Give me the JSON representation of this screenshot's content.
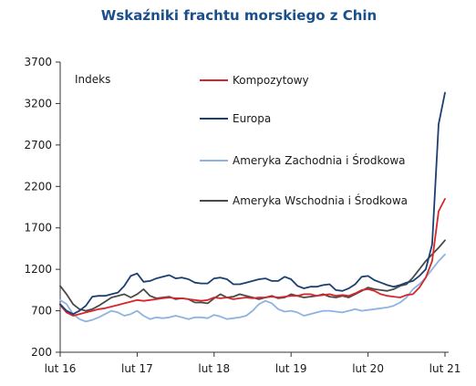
{
  "chart_data": {
    "type": "line",
    "title": "Wskaźniki frachtu morskiego z Chin",
    "ylabel": "Indeks",
    "xlabel": "",
    "ylim": [
      200,
      3700
    ],
    "yticks": [
      200,
      700,
      1200,
      1700,
      2200,
      2700,
      3200,
      3700
    ],
    "xlim": [
      0,
      60
    ],
    "xticks": [
      {
        "label": "lut 16",
        "x": 0
      },
      {
        "label": "lut 17",
        "x": 12
      },
      {
        "label": "lut 18",
        "x": 24
      },
      {
        "label": "lut 19",
        "x": 36
      },
      {
        "label": "lut 20",
        "x": 48
      },
      {
        "label": "lut 21",
        "x": 60
      }
    ],
    "legend_position": "upper-right",
    "grid": false,
    "series": [
      {
        "name": "Kompozytowy",
        "color": "#d7262b",
        "x": [
          0,
          1,
          2,
          3,
          4,
          5,
          6,
          7,
          8,
          9,
          10,
          11,
          12,
          13,
          14,
          15,
          16,
          17,
          18,
          19,
          20,
          21,
          22,
          23,
          24,
          25,
          26,
          27,
          28,
          29,
          30,
          31,
          32,
          33,
          34,
          35,
          36,
          37,
          38,
          39,
          40,
          41,
          42,
          43,
          44,
          45,
          46,
          47,
          48,
          49,
          50,
          51,
          52,
          53,
          54,
          55,
          56,
          57,
          58,
          59,
          60
        ],
        "values": [
          770,
          680,
          640,
          660,
          680,
          700,
          720,
          730,
          750,
          770,
          790,
          810,
          830,
          820,
          830,
          840,
          850,
          860,
          850,
          850,
          840,
          830,
          820,
          830,
          860,
          850,
          860,
          840,
          850,
          860,
          850,
          860,
          860,
          870,
          860,
          870,
          880,
          880,
          900,
          900,
          880,
          890,
          900,
          880,
          890,
          880,
          910,
          950,
          960,
          940,
          900,
          880,
          870,
          860,
          890,
          900,
          980,
          1100,
          1300,
          1900,
          2050
        ]
      },
      {
        "name": "Europa",
        "color": "#1c3f72",
        "x": [
          0,
          1,
          2,
          3,
          4,
          5,
          6,
          7,
          8,
          9,
          10,
          11,
          12,
          13,
          14,
          15,
          16,
          17,
          18,
          19,
          20,
          21,
          22,
          23,
          24,
          25,
          26,
          27,
          28,
          29,
          30,
          31,
          32,
          33,
          34,
          35,
          36,
          37,
          38,
          39,
          40,
          41,
          42,
          43,
          44,
          45,
          46,
          47,
          48,
          49,
          50,
          51,
          52,
          53,
          54,
          55,
          56,
          57,
          58,
          59,
          60
        ],
        "values": [
          780,
          700,
          660,
          700,
          760,
          870,
          880,
          880,
          900,
          920,
          1000,
          1120,
          1150,
          1050,
          1060,
          1090,
          1110,
          1130,
          1090,
          1100,
          1080,
          1040,
          1030,
          1030,
          1090,
          1100,
          1080,
          1020,
          1020,
          1040,
          1060,
          1080,
          1090,
          1060,
          1060,
          1110,
          1080,
          1000,
          970,
          990,
          990,
          1010,
          1020,
          950,
          940,
          970,
          1020,
          1110,
          1120,
          1070,
          1040,
          1010,
          990,
          1010,
          1040,
          1060,
          1120,
          1200,
          1500,
          2950,
          3330
        ]
      },
      {
        "name": "Ameryka Zachodnia i Środkowa",
        "color": "#8fb3e0",
        "x": [
          0,
          1,
          2,
          3,
          4,
          5,
          6,
          7,
          8,
          9,
          10,
          11,
          12,
          13,
          14,
          15,
          16,
          17,
          18,
          19,
          20,
          21,
          22,
          23,
          24,
          25,
          26,
          27,
          28,
          29,
          30,
          31,
          32,
          33,
          34,
          35,
          36,
          37,
          38,
          39,
          40,
          41,
          42,
          43,
          44,
          45,
          46,
          47,
          48,
          49,
          50,
          51,
          52,
          53,
          54,
          55,
          56,
          57,
          58,
          59,
          60
        ],
        "values": [
          830,
          780,
          660,
          600,
          570,
          590,
          620,
          660,
          700,
          680,
          640,
          660,
          700,
          640,
          600,
          620,
          610,
          620,
          640,
          620,
          600,
          620,
          620,
          610,
          650,
          630,
          600,
          610,
          620,
          640,
          700,
          780,
          820,
          790,
          720,
          690,
          700,
          680,
          640,
          660,
          680,
          700,
          700,
          690,
          680,
          700,
          720,
          700,
          710,
          720,
          730,
          740,
          760,
          800,
          860,
          960,
          1020,
          1100,
          1200,
          1300,
          1380
        ]
      },
      {
        "name": "Ameryka Wschodnia i Środkowa",
        "color": "#4a4a4a",
        "x": [
          0,
          1,
          2,
          3,
          4,
          5,
          6,
          7,
          8,
          9,
          10,
          11,
          12,
          13,
          14,
          15,
          16,
          17,
          18,
          19,
          20,
          21,
          22,
          23,
          24,
          25,
          26,
          27,
          28,
          29,
          30,
          31,
          32,
          33,
          34,
          35,
          36,
          37,
          38,
          39,
          40,
          41,
          42,
          43,
          44,
          45,
          46,
          47,
          48,
          49,
          50,
          51,
          52,
          53,
          54,
          55,
          56,
          57,
          58,
          59,
          60
        ],
        "values": [
          1000,
          900,
          780,
          720,
          700,
          720,
          760,
          810,
          860,
          880,
          900,
          860,
          900,
          960,
          880,
          850,
          860,
          870,
          840,
          850,
          840,
          800,
          800,
          790,
          850,
          900,
          860,
          870,
          900,
          880,
          860,
          840,
          860,
          880,
          850,
          860,
          900,
          880,
          860,
          870,
          880,
          900,
          870,
          860,
          880,
          860,
          900,
          940,
          980,
          960,
          950,
          940,
          960,
          1000,
          1020,
          1100,
          1200,
          1300,
          1380,
          1460,
          1550
        ]
      }
    ]
  }
}
